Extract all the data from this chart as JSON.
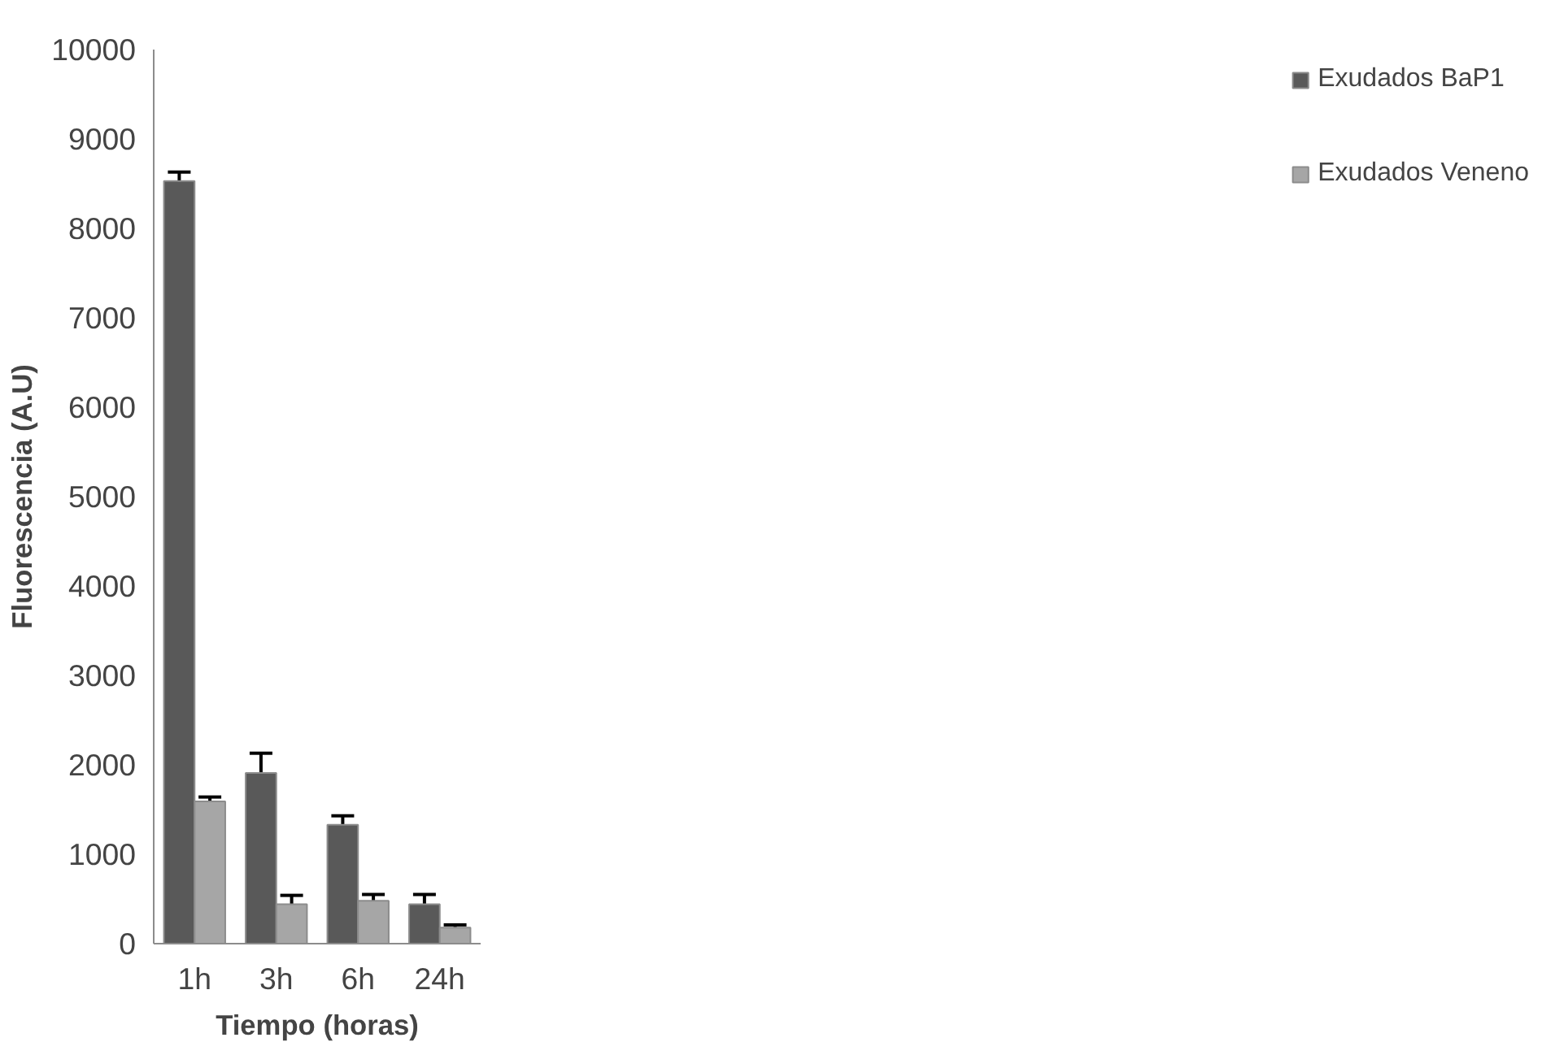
{
  "chart_data": {
    "type": "bar",
    "xlabel": "Tiempo (horas)",
    "ylabel": "Fluorescencia (A.U)",
    "categories": [
      "1h",
      "3h",
      "6h",
      "24h"
    ],
    "series": [
      {
        "name": "Exudados BaP1",
        "color": "#595959",
        "values": [
          8530,
          1910,
          1330,
          440
        ],
        "errors": [
          100,
          220,
          100,
          110
        ]
      },
      {
        "name": "Exudados Veneno",
        "color": "#a6a6a6",
        "values": [
          1590,
          440,
          480,
          180
        ],
        "errors": [
          50,
          100,
          70,
          30
        ]
      }
    ],
    "ylim": [
      0,
      10000
    ],
    "yticks": [
      0,
      1000,
      2000,
      3000,
      4000,
      5000,
      6000,
      7000,
      8000,
      9000,
      10000
    ],
    "grid": false,
    "legend": "right"
  }
}
